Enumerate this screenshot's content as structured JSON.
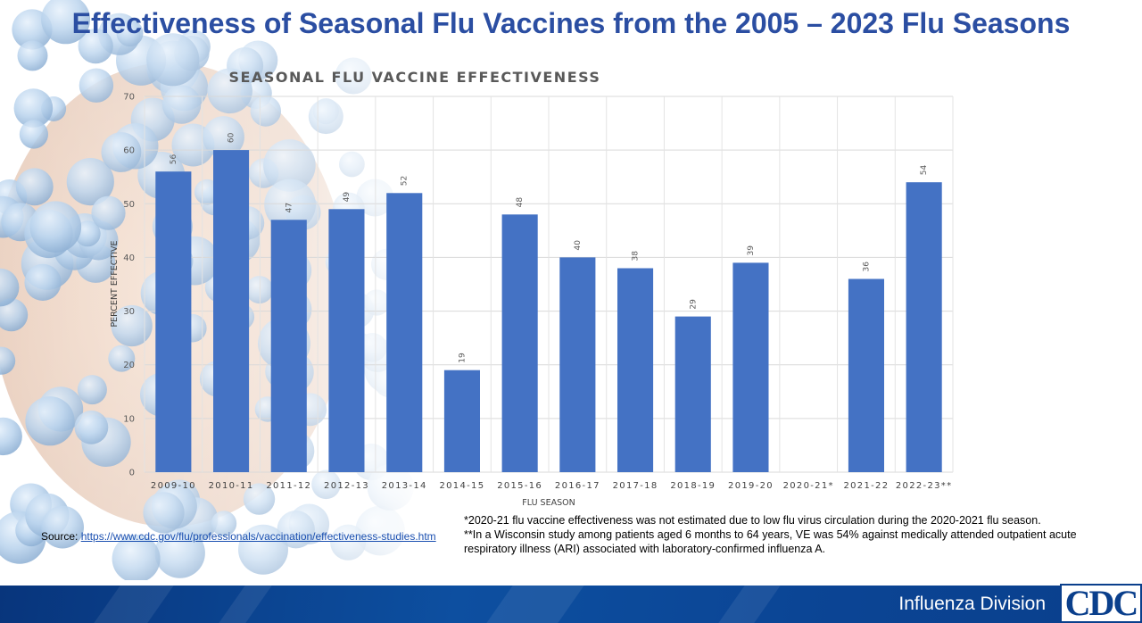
{
  "slide": {
    "title": "Effectiveness of Seasonal Flu Vaccines from the 2005 – 2023 Flu Seasons"
  },
  "chart_data": {
    "type": "bar",
    "title": "SEASONAL FLU VACCINE EFFECTIVENESS",
    "xlabel": "FLU SEASON",
    "ylabel": "PERCENT EFFECTIVE",
    "ylim": [
      0,
      70
    ],
    "yticks": [
      0,
      10,
      20,
      30,
      40,
      50,
      60,
      70
    ],
    "grid": true,
    "bar_color": "#4472c4",
    "categories": [
      "2009-10",
      "2010-11",
      "2011-12",
      "2012-13",
      "2013-14",
      "2014-15",
      "2015-16",
      "2016-17",
      "2017-18",
      "2018-19",
      "2019-20",
      "2020-21*",
      "2021-22",
      "2022-23**"
    ],
    "values": [
      56,
      60,
      47,
      49,
      52,
      19,
      48,
      40,
      38,
      29,
      39,
      null,
      36,
      54
    ]
  },
  "source": {
    "label": "Source:",
    "link_text": "https://www.cdc.gov/flu/professionals/vaccination/effectiveness-studies.htm"
  },
  "footnotes": {
    "note1": "*2020-21 flu vaccine effectiveness was not estimated due to low flu virus circulation during the 2020-2021 flu season.",
    "note2": "**In a Wisconsin study among patients aged 6 months to 64 years, VE was 54% against medically attended outpatient acute respiratory illness (ARI) associated with laboratory-confirmed influenza A."
  },
  "footer": {
    "division": "Influenza Division",
    "logo_text": "CDC"
  }
}
